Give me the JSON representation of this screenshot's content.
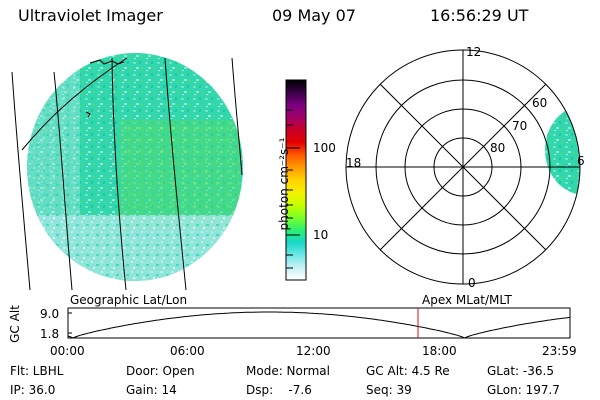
{
  "header": {
    "instrument": "Ultraviolet Imager",
    "date": "09 May 07",
    "time": "16:56:29 UT"
  },
  "colorbar": {
    "label": "photon cm⁻²s⁻¹",
    "ticks": [
      "100",
      "10"
    ],
    "colors": [
      "#000000",
      "#3a0046",
      "#7a0080",
      "#a3006a",
      "#c80028",
      "#e40000",
      "#ff5a00",
      "#ff9a00",
      "#ffd200",
      "#f6f000",
      "#c8ff00",
      "#7cff26",
      "#2bf06e",
      "#18d7c8",
      "#6fe8e8",
      "#c8f2f4",
      "#ffffff"
    ]
  },
  "polar": {
    "labels": [
      "12",
      "60",
      "70",
      "80",
      "18",
      "6",
      "0"
    ]
  },
  "timeline": {
    "left_label": "Geographic Lat/Lon",
    "right_label": "Apex MLat/MLT",
    "yaxis_title": "GC Alt",
    "yticks": [
      "9.0",
      "1.8"
    ],
    "xticks": [
      "00:00",
      "06:00",
      "12:00",
      "18:00",
      "23:59"
    ],
    "marker_color": "#c81414"
  },
  "info": {
    "flt": "Flt: LBHL",
    "ip": "IP: 36.0",
    "door": "Door: Open",
    "gain": "Gain: 14",
    "mode": "Mode: Normal",
    "dsp": "Dsp:    -7.6",
    "gcalt": "GC Alt: 4.5 Re",
    "seq": "Seq: 39",
    "glat": "GLat: -36.5",
    "glon": "GLon: 197.7"
  }
}
